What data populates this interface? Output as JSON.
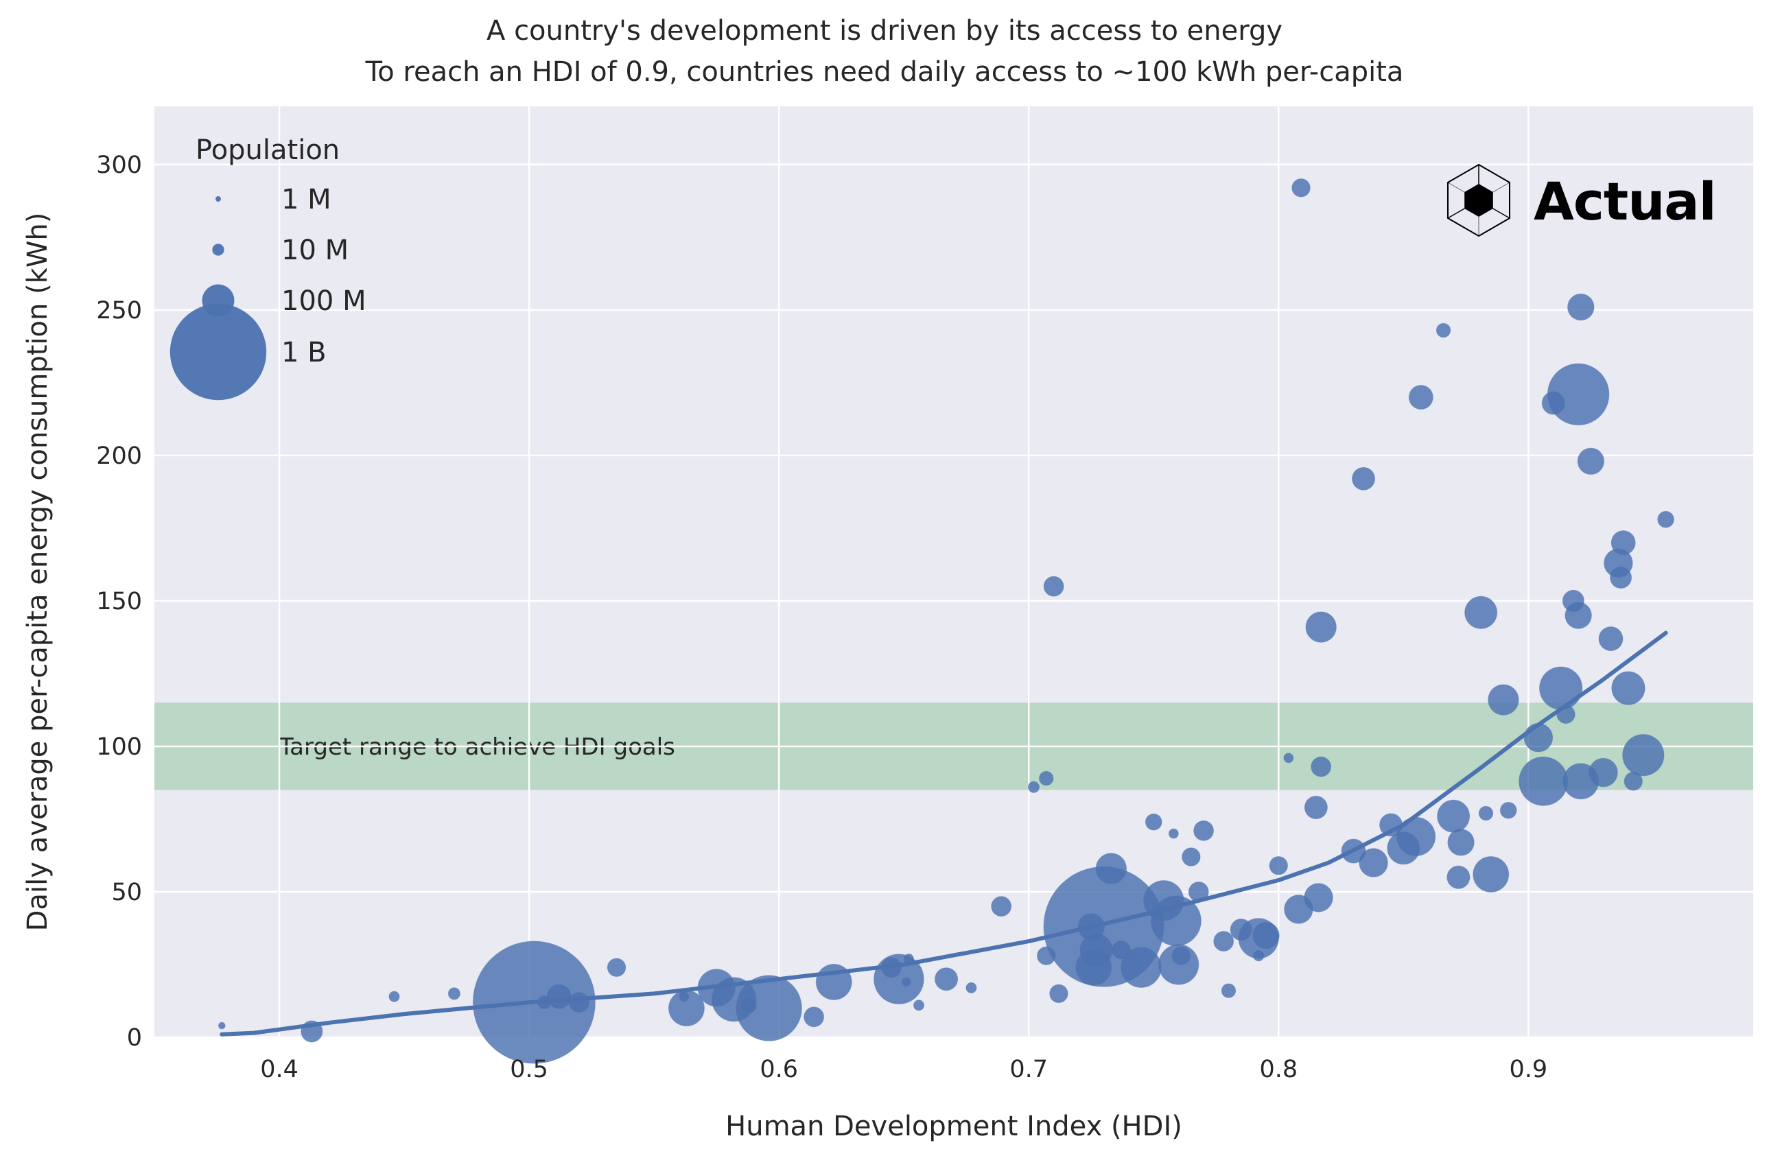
{
  "chart_data": {
    "type": "scatter",
    "title": "A country's development is driven by its access to energy",
    "subtitle": "To reach an HDI of 0.9, countries need daily access to ~100 kWh per-capita",
    "xlabel": "Human Development Index (HDI)",
    "ylabel": "Daily average per-capita energy consumption (kWh)",
    "xlim": [
      0.35,
      0.99
    ],
    "ylim": [
      0,
      320
    ],
    "xticks": [
      0.4,
      0.5,
      0.6,
      0.7,
      0.8,
      0.9
    ],
    "xtick_labels": [
      "0.4",
      "0.5",
      "0.6",
      "0.7",
      "0.8",
      "0.9"
    ],
    "yticks": [
      0,
      50,
      100,
      150,
      200,
      250,
      300
    ],
    "ytick_labels": [
      "0",
      "50",
      "100",
      "150",
      "200",
      "250",
      "300"
    ],
    "grid": true,
    "colors": {
      "points": "#4c72b0",
      "band": "#b5d6c0",
      "background": "#eaeaf2",
      "grid": "#ffffff"
    },
    "target_band": {
      "y_min": 85,
      "y_max": 115,
      "label": "Target range to achieve HDI goals"
    },
    "legend": {
      "title": "Population",
      "placement": "top-left",
      "entries": [
        {
          "label": "1 M",
          "population_millions": 1
        },
        {
          "label": "10 M",
          "population_millions": 10
        },
        {
          "label": "100 M",
          "population_millions": 100
        },
        {
          "label": "1 B",
          "population_millions": 1000
        }
      ]
    },
    "logo": {
      "text": "Actual",
      "icon": "cube-icon",
      "placement": "top-right"
    },
    "trend_line": {
      "x": [
        0.377,
        0.39,
        0.42,
        0.45,
        0.5,
        0.55,
        0.6,
        0.65,
        0.7,
        0.75,
        0.8,
        0.82,
        0.85,
        0.88,
        0.9,
        0.93,
        0.955
      ],
      "y": [
        1,
        1.5,
        5,
        8,
        12,
        15,
        20,
        25,
        33,
        43,
        54,
        60,
        73,
        92,
        105,
        123,
        139
      ]
    },
    "points": [
      {
        "x": 0.377,
        "y": 4,
        "pop": 0.7
      },
      {
        "x": 0.413,
        "y": 2,
        "pop": 30
      },
      {
        "x": 0.446,
        "y": 14,
        "pop": 4
      },
      {
        "x": 0.47,
        "y": 15,
        "pop": 6
      },
      {
        "x": 0.502,
        "y": 12,
        "pop": 1400
      },
      {
        "x": 0.506,
        "y": 12,
        "pop": 8
      },
      {
        "x": 0.512,
        "y": 14,
        "pop": 40
      },
      {
        "x": 0.52,
        "y": 12,
        "pop": 25
      },
      {
        "x": 0.535,
        "y": 24,
        "pop": 20
      },
      {
        "x": 0.562,
        "y": 14,
        "pop": 3
      },
      {
        "x": 0.563,
        "y": 10,
        "pop": 100
      },
      {
        "x": 0.575,
        "y": 17,
        "pop": 110
      },
      {
        "x": 0.582,
        "y": 13,
        "pop": 160
      },
      {
        "x": 0.588,
        "y": 11,
        "pop": 12
      },
      {
        "x": 0.596,
        "y": 10,
        "pop": 380
      },
      {
        "x": 0.614,
        "y": 7,
        "pop": 25
      },
      {
        "x": 0.622,
        "y": 19,
        "pop": 100
      },
      {
        "x": 0.645,
        "y": 24,
        "pop": 25
      },
      {
        "x": 0.648,
        "y": 20,
        "pop": 210
      },
      {
        "x": 0.651,
        "y": 19,
        "pop": 2
      },
      {
        "x": 0.652,
        "y": 27,
        "pop": 3
      },
      {
        "x": 0.656,
        "y": 11,
        "pop": 4
      },
      {
        "x": 0.667,
        "y": 20,
        "pop": 35
      },
      {
        "x": 0.677,
        "y": 17,
        "pop": 4
      },
      {
        "x": 0.689,
        "y": 45,
        "pop": 25
      },
      {
        "x": 0.702,
        "y": 86,
        "pop": 5
      },
      {
        "x": 0.707,
        "y": 89,
        "pop": 10
      },
      {
        "x": 0.707,
        "y": 28,
        "pop": 20
      },
      {
        "x": 0.71,
        "y": 155,
        "pop": 25
      },
      {
        "x": 0.712,
        "y": 15,
        "pop": 20
      },
      {
        "x": 0.725,
        "y": 38,
        "pop": 50
      },
      {
        "x": 0.726,
        "y": 24,
        "pop": 100
      },
      {
        "x": 0.727,
        "y": 30,
        "pop": 80
      },
      {
        "x": 0.73,
        "y": 38,
        "pop": 1350
      },
      {
        "x": 0.733,
        "y": 58,
        "pop": 70
      },
      {
        "x": 0.737,
        "y": 30,
        "pop": 20
      },
      {
        "x": 0.745,
        "y": 24,
        "pop": 130
      },
      {
        "x": 0.75,
        "y": 74,
        "pop": 15
      },
      {
        "x": 0.754,
        "y": 47,
        "pop": 130
      },
      {
        "x": 0.758,
        "y": 70,
        "pop": 3
      },
      {
        "x": 0.759,
        "y": 40,
        "pop": 210
      },
      {
        "x": 0.76,
        "y": 25,
        "pop": 130
      },
      {
        "x": 0.761,
        "y": 28,
        "pop": 20
      },
      {
        "x": 0.765,
        "y": 62,
        "pop": 20
      },
      {
        "x": 0.768,
        "y": 50,
        "pop": 25
      },
      {
        "x": 0.77,
        "y": 71,
        "pop": 25
      },
      {
        "x": 0.778,
        "y": 33,
        "pop": 25
      },
      {
        "x": 0.78,
        "y": 16,
        "pop": 10
      },
      {
        "x": 0.785,
        "y": 37,
        "pop": 30
      },
      {
        "x": 0.792,
        "y": 28,
        "pop": 4
      },
      {
        "x": 0.792,
        "y": 34,
        "pop": 130
      },
      {
        "x": 0.795,
        "y": 35,
        "pop": 50
      },
      {
        "x": 0.8,
        "y": 59,
        "pop": 20
      },
      {
        "x": 0.804,
        "y": 96,
        "pop": 3
      },
      {
        "x": 0.808,
        "y": 44,
        "pop": 60
      },
      {
        "x": 0.809,
        "y": 292,
        "pop": 20
      },
      {
        "x": 0.815,
        "y": 79,
        "pop": 35
      },
      {
        "x": 0.816,
        "y": 48,
        "pop": 60
      },
      {
        "x": 0.817,
        "y": 141,
        "pop": 70
      },
      {
        "x": 0.817,
        "y": 93,
        "pop": 25
      },
      {
        "x": 0.83,
        "y": 64,
        "pop": 40
      },
      {
        "x": 0.834,
        "y": 192,
        "pop": 35
      },
      {
        "x": 0.838,
        "y": 60,
        "pop": 60
      },
      {
        "x": 0.845,
        "y": 73,
        "pop": 35
      },
      {
        "x": 0.85,
        "y": 65,
        "pop": 80
      },
      {
        "x": 0.855,
        "y": 69,
        "pop": 120
      },
      {
        "x": 0.857,
        "y": 220,
        "pop": 40
      },
      {
        "x": 0.866,
        "y": 243,
        "pop": 10
      },
      {
        "x": 0.87,
        "y": 76,
        "pop": 80
      },
      {
        "x": 0.872,
        "y": 55,
        "pop": 35
      },
      {
        "x": 0.873,
        "y": 67,
        "pop": 50
      },
      {
        "x": 0.881,
        "y": 146,
        "pop": 80
      },
      {
        "x": 0.883,
        "y": 77,
        "pop": 10
      },
      {
        "x": 0.885,
        "y": 56,
        "pop": 100
      },
      {
        "x": 0.89,
        "y": 116,
        "pop": 70
      },
      {
        "x": 0.892,
        "y": 78,
        "pop": 15
      },
      {
        "x": 0.904,
        "y": 103,
        "pop": 60
      },
      {
        "x": 0.906,
        "y": 88,
        "pop": 200
      },
      {
        "x": 0.91,
        "y": 218,
        "pop": 35
      },
      {
        "x": 0.913,
        "y": 120,
        "pop": 150
      },
      {
        "x": 0.915,
        "y": 111,
        "pop": 20
      },
      {
        "x": 0.918,
        "y": 150,
        "pop": 30
      },
      {
        "x": 0.92,
        "y": 145,
        "pop": 50
      },
      {
        "x": 0.921,
        "y": 88,
        "pop": 100
      },
      {
        "x": 0.92,
        "y": 221,
        "pop": 330
      },
      {
        "x": 0.921,
        "y": 251,
        "pop": 50
      },
      {
        "x": 0.925,
        "y": 198,
        "pop": 50
      },
      {
        "x": 0.93,
        "y": 91,
        "pop": 60
      },
      {
        "x": 0.933,
        "y": 137,
        "pop": 40
      },
      {
        "x": 0.936,
        "y": 163,
        "pop": 60
      },
      {
        "x": 0.937,
        "y": 158,
        "pop": 30
      },
      {
        "x": 0.938,
        "y": 170,
        "pop": 40
      },
      {
        "x": 0.94,
        "y": 120,
        "pop": 85
      },
      {
        "x": 0.942,
        "y": 88,
        "pop": 20
      },
      {
        "x": 0.946,
        "y": 97,
        "pop": 140
      },
      {
        "x": 0.955,
        "y": 178,
        "pop": 15
      }
    ]
  }
}
